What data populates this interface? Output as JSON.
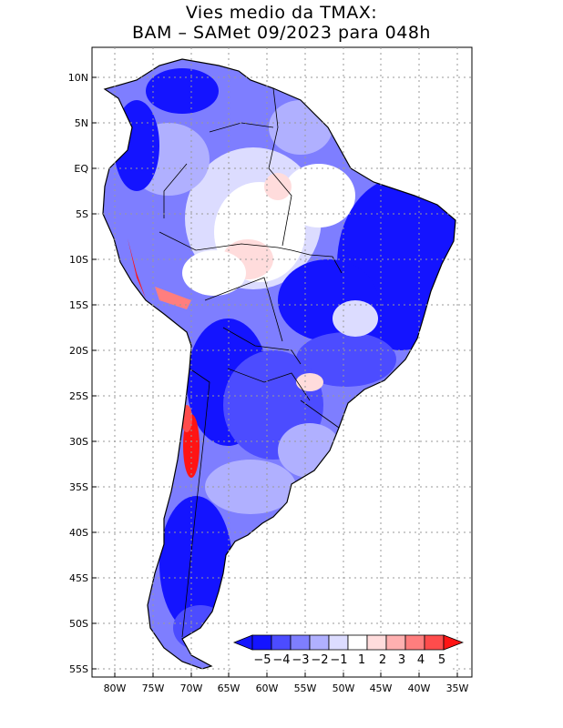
{
  "title": {
    "line1": "Vies medio da TMAX:",
    "line2": "BAM – SAMet 09/2023  para 048h"
  },
  "axes": {
    "lat_labels": [
      "10N",
      "5N",
      "EQ",
      "5S",
      "10S",
      "15S",
      "20S",
      "25S",
      "30S",
      "35S",
      "40S",
      "45S",
      "50S",
      "55S"
    ],
    "lon_labels": [
      "80W",
      "75W",
      "70W",
      "65W",
      "60W",
      "55W",
      "50W",
      "45W",
      "40W",
      "35W"
    ]
  },
  "colorbar": {
    "labels": [
      "−5",
      "−4",
      "−3",
      "−2",
      "−1",
      "1",
      "2",
      "3",
      "4",
      "5"
    ],
    "colors": [
      "#1414ff",
      "#4c4cff",
      "#7e7eff",
      "#b0b0ff",
      "#dcdcff",
      "#ffffff",
      "#ffdcdc",
      "#ffb0b0",
      "#ff7e7e",
      "#ff4c4c",
      "#ff1414"
    ]
  },
  "colors": {
    "strong_blue": "#1414ff",
    "blue": "#4c4cff",
    "mid_blue": "#7e7eff",
    "light_blue": "#b0b0ff",
    "pale_blue": "#dcdcff",
    "red": "#ff1414",
    "light_red": "#ffb0b0",
    "grid": "#9a9a9a"
  }
}
